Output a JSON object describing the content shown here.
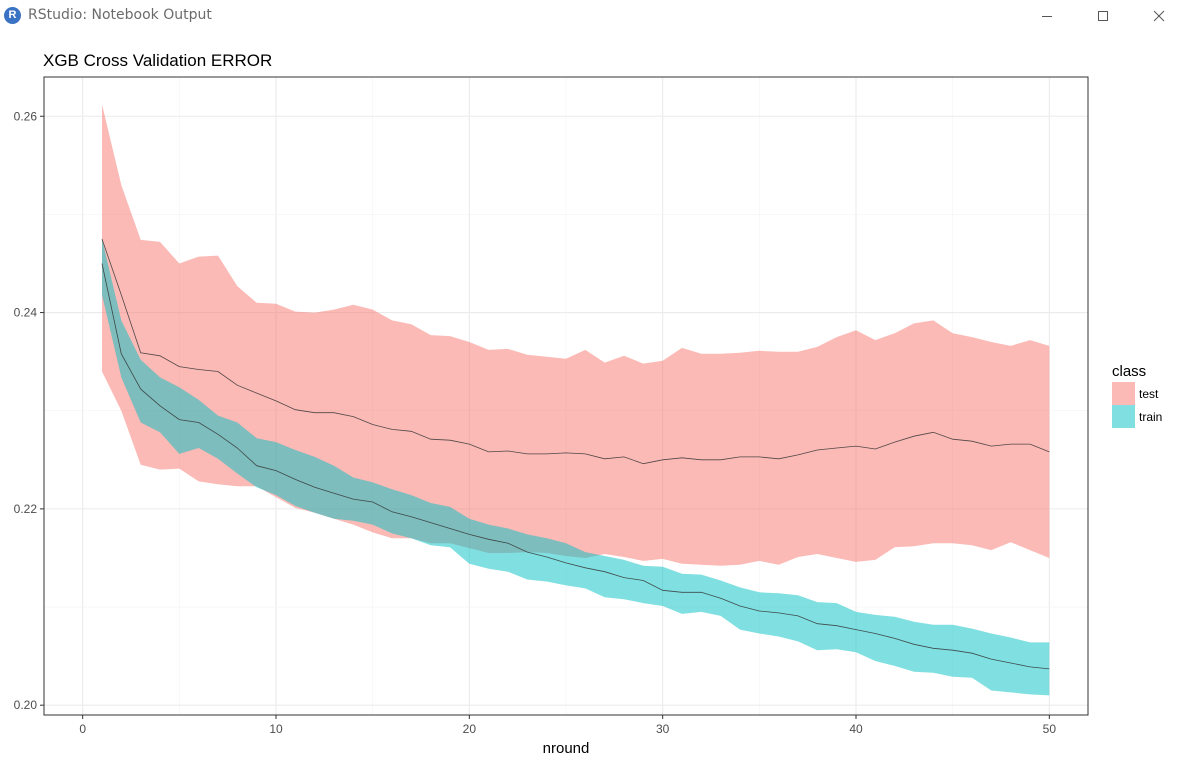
{
  "window": {
    "title": "RStudio: Notebook Output",
    "logo_letter": "R"
  },
  "chart_data": {
    "type": "area",
    "title": "XGB Cross Validation ERROR",
    "xlabel": "nround",
    "ylabel": "",
    "xlim": [
      -2,
      52
    ],
    "ylim": [
      0.199,
      0.264
    ],
    "xticks": [
      0,
      10,
      20,
      30,
      40,
      50
    ],
    "yticks": [
      0.2,
      0.22,
      0.24,
      0.26
    ],
    "grid": true,
    "legend": {
      "title": "class",
      "position": "right",
      "entries": [
        "test",
        "train"
      ]
    },
    "colors": {
      "test": "#f8766d",
      "train": "#00bfc4"
    },
    "series": [
      {
        "name": "test",
        "x": [
          1,
          2,
          3,
          4,
          5,
          6,
          7,
          8,
          9,
          10,
          11,
          12,
          13,
          14,
          15,
          16,
          17,
          18,
          19,
          20,
          21,
          22,
          23,
          24,
          25,
          26,
          27,
          28,
          29,
          30,
          31,
          32,
          33,
          34,
          35,
          36,
          37,
          38,
          39,
          40,
          41,
          42,
          43,
          44,
          45,
          46,
          47,
          48,
          49,
          50
        ],
        "mean": [
          0.2475,
          0.2418,
          0.2359,
          0.2356,
          0.2345,
          0.2342,
          0.234,
          0.2326,
          0.2318,
          0.231,
          0.2301,
          0.2298,
          0.2298,
          0.2294,
          0.2286,
          0.2281,
          0.2279,
          0.2271,
          0.227,
          0.2266,
          0.2258,
          0.2259,
          0.2256,
          0.2256,
          0.2257,
          0.2256,
          0.2251,
          0.2253,
          0.2246,
          0.225,
          0.2252,
          0.225,
          0.225,
          0.2253,
          0.2253,
          0.2251,
          0.2255,
          0.226,
          0.2262,
          0.2264,
          0.2261,
          0.2268,
          0.2274,
          0.2278,
          0.2271,
          0.2269,
          0.2264,
          0.2266,
          0.2266,
          0.2258
        ],
        "upper": [
          0.2612,
          0.253,
          0.2474,
          0.2472,
          0.245,
          0.2457,
          0.2458,
          0.2427,
          0.241,
          0.2409,
          0.2401,
          0.24,
          0.2403,
          0.2408,
          0.2403,
          0.2392,
          0.2388,
          0.2377,
          0.2376,
          0.237,
          0.2362,
          0.2363,
          0.2357,
          0.2355,
          0.2353,
          0.2362,
          0.2349,
          0.2356,
          0.2348,
          0.2351,
          0.2364,
          0.2358,
          0.2358,
          0.2359,
          0.2361,
          0.236,
          0.236,
          0.2365,
          0.2375,
          0.2382,
          0.2372,
          0.2379,
          0.2389,
          0.2392,
          0.2379,
          0.2375,
          0.237,
          0.2366,
          0.2372,
          0.2366
        ],
        "lower": [
          0.234,
          0.23,
          0.2245,
          0.224,
          0.2241,
          0.2228,
          0.2225,
          0.2223,
          0.2223,
          0.2212,
          0.2201,
          0.2196,
          0.219,
          0.2184,
          0.2176,
          0.217,
          0.217,
          0.2165,
          0.2165,
          0.216,
          0.2155,
          0.2155,
          0.2156,
          0.2155,
          0.2152,
          0.215,
          0.2154,
          0.2151,
          0.2147,
          0.2149,
          0.2144,
          0.2143,
          0.2142,
          0.2143,
          0.2147,
          0.2143,
          0.2151,
          0.2154,
          0.215,
          0.2146,
          0.2148,
          0.2161,
          0.2162,
          0.2165,
          0.2165,
          0.2163,
          0.2158,
          0.2166,
          0.2158,
          0.215
        ]
      },
      {
        "name": "train",
        "x": [
          1,
          2,
          3,
          4,
          5,
          6,
          7,
          8,
          9,
          10,
          11,
          12,
          13,
          14,
          15,
          16,
          17,
          18,
          19,
          20,
          21,
          22,
          23,
          24,
          25,
          26,
          27,
          28,
          29,
          30,
          31,
          32,
          33,
          34,
          35,
          36,
          37,
          38,
          39,
          40,
          41,
          42,
          43,
          44,
          45,
          46,
          47,
          48,
          49,
          50
        ],
        "mean": [
          0.245,
          0.2358,
          0.2322,
          0.2305,
          0.2291,
          0.2288,
          0.2276,
          0.2262,
          0.2244,
          0.2239,
          0.223,
          0.2222,
          0.2216,
          0.221,
          0.2207,
          0.2197,
          0.2192,
          0.2186,
          0.218,
          0.2174,
          0.2169,
          0.2165,
          0.2156,
          0.2151,
          0.2145,
          0.214,
          0.2136,
          0.213,
          0.2127,
          0.2117,
          0.2115,
          0.2115,
          0.2109,
          0.2101,
          0.2096,
          0.2094,
          0.2091,
          0.2083,
          0.2081,
          0.2077,
          0.2073,
          0.2068,
          0.2062,
          0.2058,
          0.2056,
          0.2053,
          0.2047,
          0.2043,
          0.2039,
          0.2037
        ],
        "upper": [
          0.2475,
          0.2392,
          0.2352,
          0.2334,
          0.2324,
          0.2311,
          0.2295,
          0.2288,
          0.2272,
          0.2268,
          0.226,
          0.2253,
          0.2244,
          0.2232,
          0.2227,
          0.222,
          0.2214,
          0.2206,
          0.2202,
          0.219,
          0.2184,
          0.218,
          0.2174,
          0.217,
          0.2165,
          0.2156,
          0.2152,
          0.2148,
          0.2142,
          0.2141,
          0.2134,
          0.2133,
          0.2127,
          0.212,
          0.2115,
          0.2114,
          0.2112,
          0.2105,
          0.2104,
          0.2095,
          0.2092,
          0.209,
          0.2085,
          0.2082,
          0.2082,
          0.2078,
          0.2073,
          0.2069,
          0.2064,
          0.2064
        ],
        "lower": [
          0.2418,
          0.2334,
          0.2288,
          0.2278,
          0.2256,
          0.2262,
          0.2251,
          0.2236,
          0.2222,
          0.2214,
          0.2203,
          0.2196,
          0.219,
          0.2188,
          0.2184,
          0.2175,
          0.217,
          0.2163,
          0.2161,
          0.2144,
          0.2139,
          0.2136,
          0.2128,
          0.2126,
          0.2122,
          0.2119,
          0.211,
          0.2108,
          0.2104,
          0.2101,
          0.2093,
          0.2095,
          0.2091,
          0.2077,
          0.2073,
          0.207,
          0.2065,
          0.2056,
          0.2057,
          0.2054,
          0.2045,
          0.204,
          0.2034,
          0.2033,
          0.2029,
          0.2028,
          0.2015,
          0.2013,
          0.2011,
          0.201
        ]
      }
    ]
  }
}
